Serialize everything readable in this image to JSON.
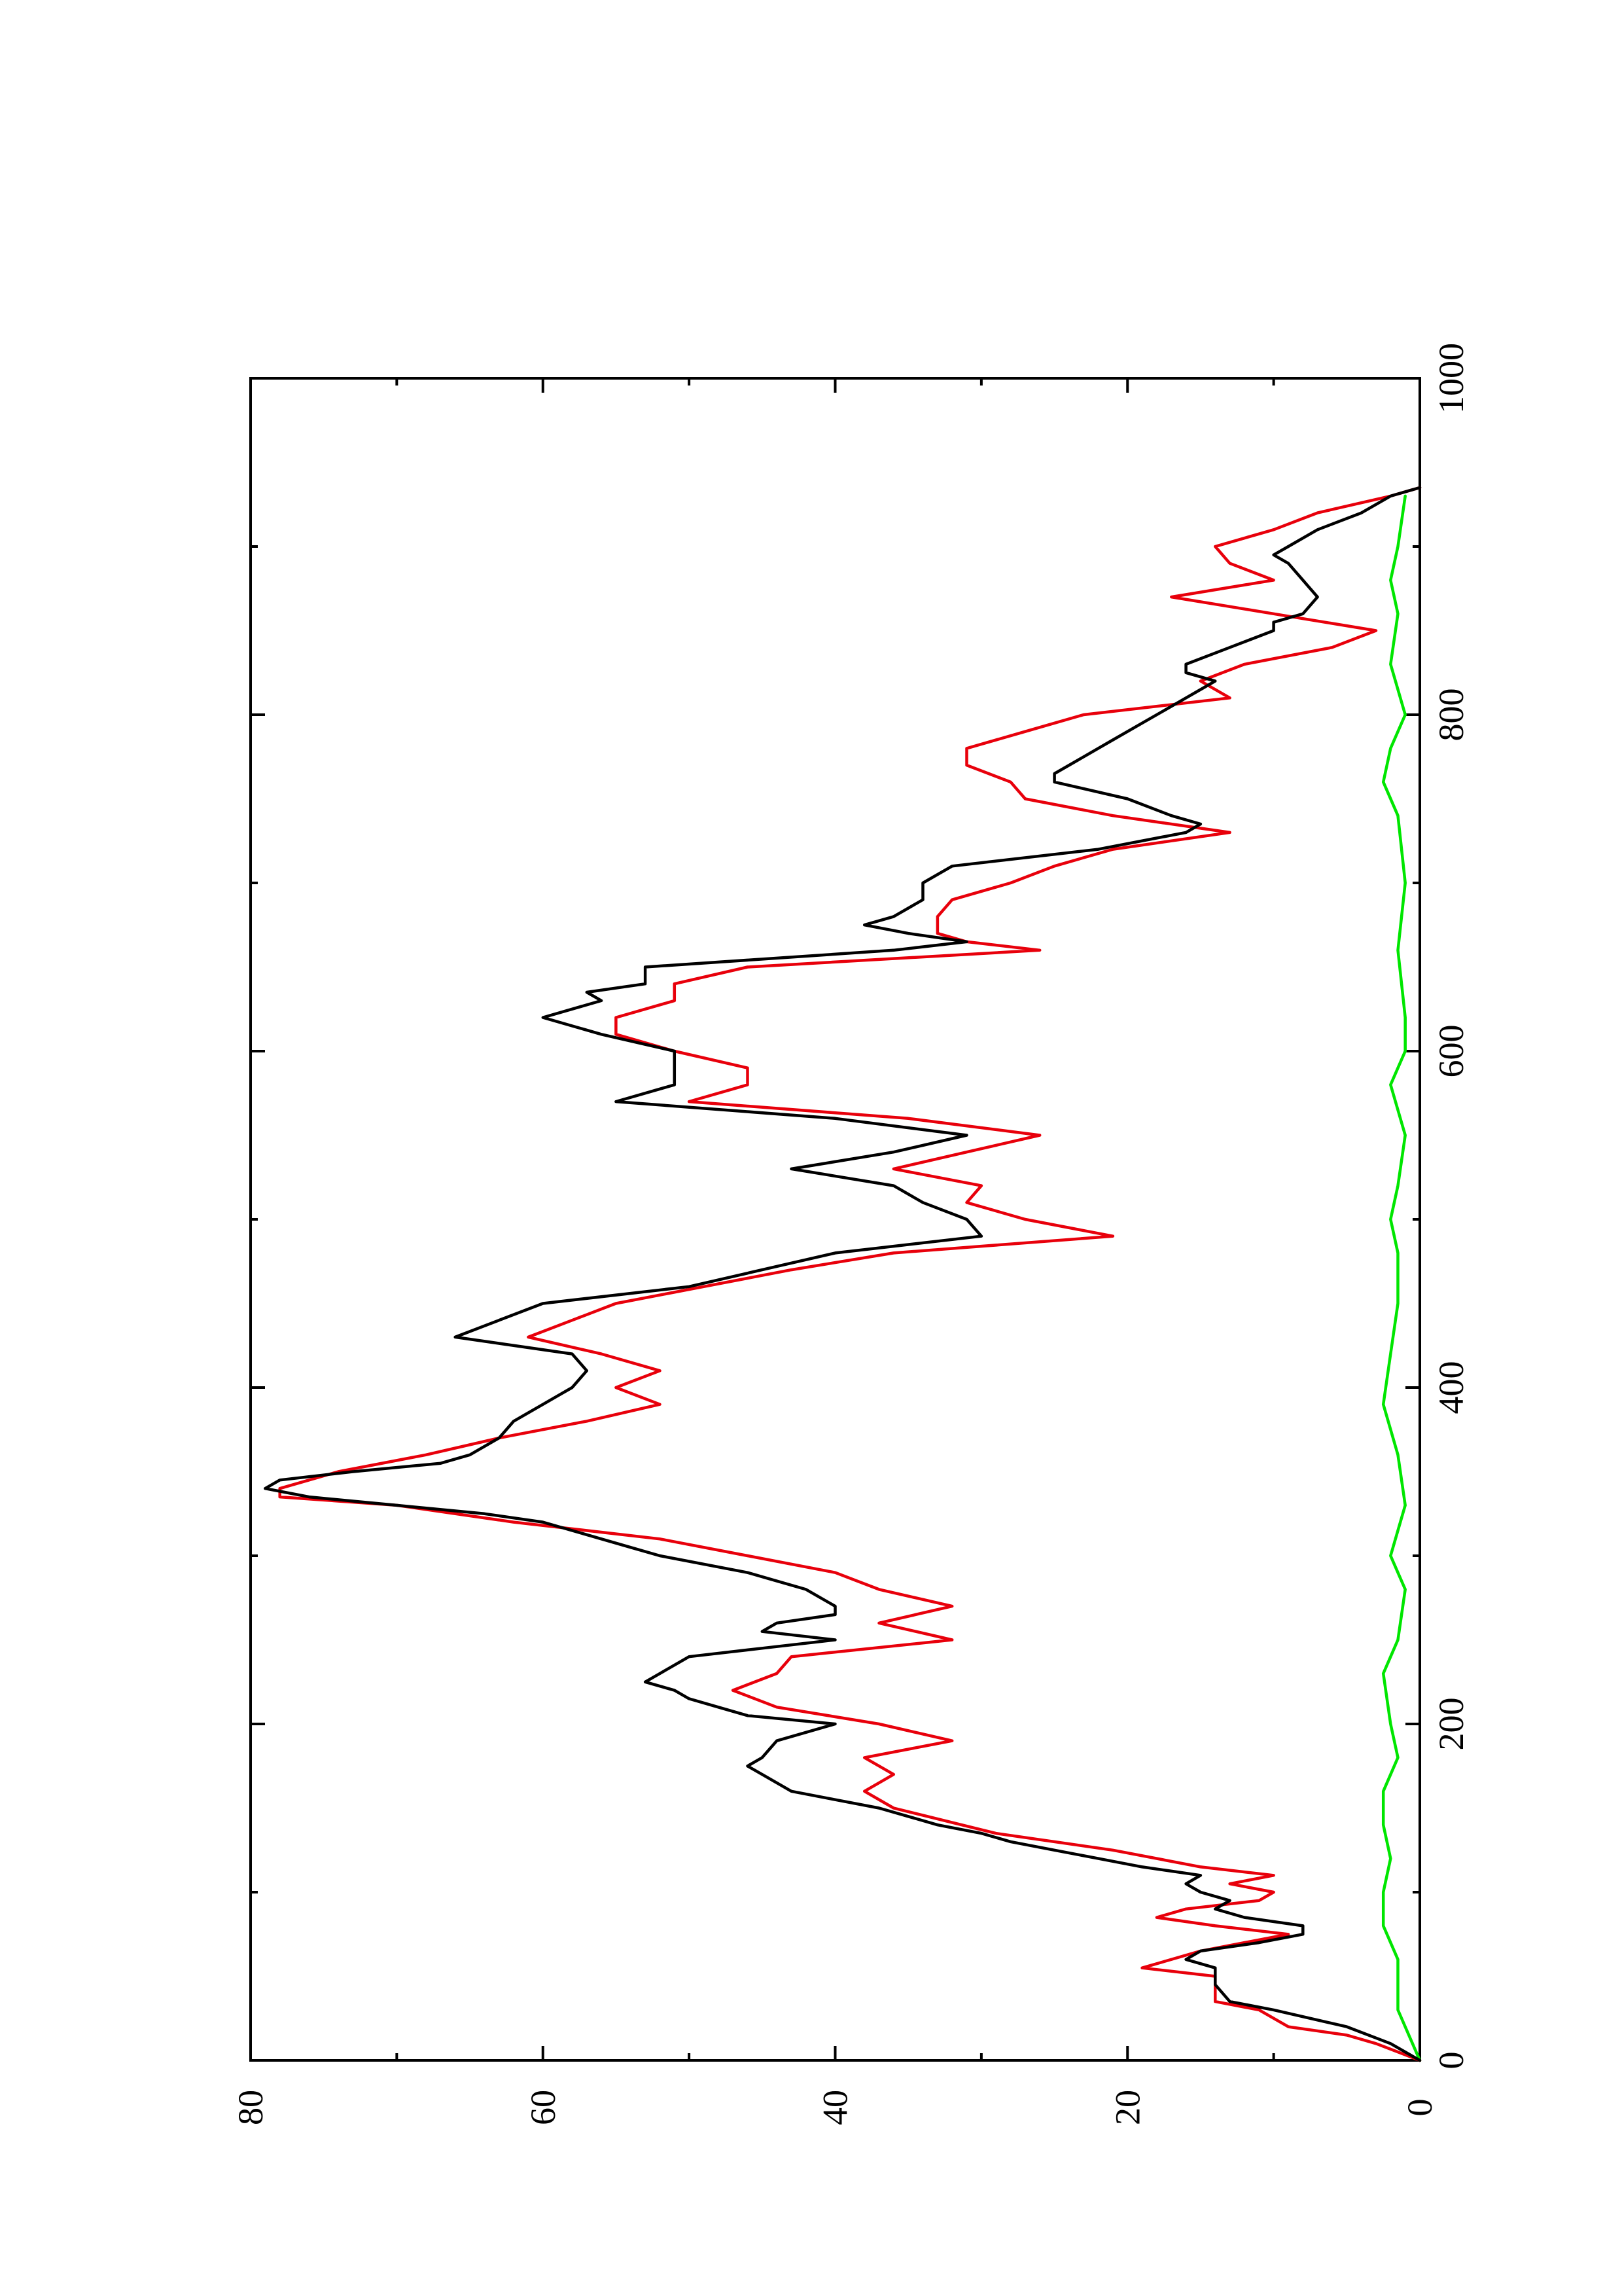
{
  "chart_data": {
    "type": "line",
    "orientation": "rotated-90-ccw",
    "title": "",
    "xlabel": "",
    "ylabel": "",
    "xlim": [
      0,
      1000
    ],
    "ylim": [
      0,
      80
    ],
    "x_ticks": [
      0,
      200,
      400,
      600,
      800,
      1000
    ],
    "x_tick_labels": [
      "0",
      "200",
      "400",
      "600",
      "800",
      "1000"
    ],
    "x_minor_ticks": [
      100,
      300,
      500,
      700,
      900
    ],
    "y_ticks": [
      0,
      20,
      40,
      60,
      80
    ],
    "y_tick_labels": [
      "0",
      "20",
      "40",
      "60",
      "80"
    ],
    "y_minor_ticks": [
      10,
      30,
      50,
      70
    ],
    "grid": false,
    "legend": "none",
    "series": [
      {
        "color": "#000000",
        "points": [
          [
            0,
            0
          ],
          [
            10,
            2
          ],
          [
            20,
            5
          ],
          [
            30,
            10
          ],
          [
            35,
            13
          ],
          [
            45,
            14
          ],
          [
            55,
            14
          ],
          [
            60,
            16
          ],
          [
            65,
            15
          ],
          [
            70,
            11
          ],
          [
            75,
            8
          ],
          [
            80,
            8
          ],
          [
            85,
            12
          ],
          [
            90,
            14
          ],
          [
            95,
            13
          ],
          [
            100,
            15
          ],
          [
            105,
            16
          ],
          [
            110,
            15
          ],
          [
            115,
            19
          ],
          [
            120,
            22
          ],
          [
            125,
            25
          ],
          [
            130,
            28
          ],
          [
            135,
            30
          ],
          [
            140,
            33
          ],
          [
            145,
            35
          ],
          [
            150,
            37
          ],
          [
            155,
            40
          ],
          [
            160,
            43
          ],
          [
            165,
            44
          ],
          [
            170,
            45
          ],
          [
            175,
            46
          ],
          [
            180,
            45
          ],
          [
            190,
            44
          ],
          [
            200,
            40
          ],
          [
            205,
            46
          ],
          [
            210,
            48
          ],
          [
            215,
            50
          ],
          [
            220,
            51
          ],
          [
            225,
            53
          ],
          [
            230,
            52
          ],
          [
            240,
            50
          ],
          [
            245,
            45
          ],
          [
            250,
            40
          ],
          [
            255,
            45
          ],
          [
            260,
            44
          ],
          [
            265,
            40
          ],
          [
            270,
            40
          ],
          [
            280,
            42
          ],
          [
            290,
            46
          ],
          [
            300,
            52
          ],
          [
            305,
            54
          ],
          [
            310,
            56
          ],
          [
            320,
            60
          ],
          [
            325,
            64
          ],
          [
            330,
            70
          ],
          [
            335,
            76
          ],
          [
            340,
            79
          ],
          [
            345,
            78
          ],
          [
            350,
            73
          ],
          [
            355,
            67
          ],
          [
            360,
            65
          ],
          [
            370,
            63
          ],
          [
            380,
            62
          ],
          [
            390,
            60
          ],
          [
            395,
            59
          ],
          [
            400,
            58
          ],
          [
            410,
            57
          ],
          [
            420,
            58
          ],
          [
            430,
            66
          ],
          [
            440,
            63
          ],
          [
            450,
            60
          ],
          [
            460,
            50
          ],
          [
            470,
            45
          ],
          [
            480,
            40
          ],
          [
            490,
            30
          ],
          [
            500,
            31
          ],
          [
            510,
            34
          ],
          [
            520,
            36
          ],
          [
            530,
            43
          ],
          [
            540,
            36
          ],
          [
            550,
            31
          ],
          [
            560,
            40
          ],
          [
            570,
            55
          ],
          [
            580,
            51
          ],
          [
            590,
            51
          ],
          [
            600,
            51
          ],
          [
            610,
            56
          ],
          [
            620,
            60
          ],
          [
            630,
            56
          ],
          [
            635,
            57
          ],
          [
            640,
            53
          ],
          [
            650,
            53
          ],
          [
            660,
            36
          ],
          [
            665,
            31
          ],
          [
            670,
            35
          ],
          [
            675,
            38
          ],
          [
            680,
            36
          ],
          [
            690,
            34
          ],
          [
            700,
            34
          ],
          [
            710,
            32
          ],
          [
            720,
            22
          ],
          [
            730,
            16
          ],
          [
            735,
            15
          ],
          [
            740,
            17
          ],
          [
            750,
            20
          ],
          [
            760,
            25
          ],
          [
            765,
            25
          ],
          [
            775,
            23
          ],
          [
            785,
            21
          ],
          [
            795,
            19
          ],
          [
            805,
            17
          ],
          [
            815,
            15
          ],
          [
            820,
            14
          ],
          [
            825,
            16
          ],
          [
            830,
            16
          ],
          [
            840,
            13
          ],
          [
            850,
            10
          ],
          [
            855,
            10
          ],
          [
            860,
            8
          ],
          [
            870,
            7
          ],
          [
            880,
            8
          ],
          [
            890,
            9
          ],
          [
            895,
            10
          ],
          [
            900,
            9
          ],
          [
            910,
            7
          ],
          [
            920,
            4
          ],
          [
            930,
            2
          ],
          [
            935,
            0
          ]
        ]
      },
      {
        "color": "#e8000b",
        "points": [
          [
            0,
            0
          ],
          [
            10,
            3
          ],
          [
            15,
            5
          ],
          [
            20,
            9
          ],
          [
            30,
            11
          ],
          [
            35,
            14
          ],
          [
            50,
            14
          ],
          [
            55,
            19
          ],
          [
            65,
            15
          ],
          [
            75,
            9
          ],
          [
            80,
            14
          ],
          [
            85,
            18
          ],
          [
            90,
            16
          ],
          [
            95,
            11
          ],
          [
            100,
            10
          ],
          [
            105,
            13
          ],
          [
            110,
            10
          ],
          [
            115,
            15
          ],
          [
            125,
            21
          ],
          [
            135,
            29
          ],
          [
            150,
            36
          ],
          [
            160,
            38
          ],
          [
            170,
            36
          ],
          [
            180,
            38
          ],
          [
            190,
            32
          ],
          [
            200,
            37
          ],
          [
            210,
            44
          ],
          [
            220,
            47
          ],
          [
            230,
            44
          ],
          [
            240,
            43
          ],
          [
            250,
            32
          ],
          [
            260,
            37
          ],
          [
            270,
            32
          ],
          [
            280,
            37
          ],
          [
            290,
            40
          ],
          [
            300,
            46
          ],
          [
            310,
            52
          ],
          [
            320,
            62
          ],
          [
            330,
            70
          ],
          [
            335,
            78
          ],
          [
            340,
            78
          ],
          [
            350,
            74
          ],
          [
            360,
            68
          ],
          [
            370,
            63
          ],
          [
            380,
            57
          ],
          [
            390,
            52
          ],
          [
            400,
            55
          ],
          [
            410,
            52
          ],
          [
            420,
            56
          ],
          [
            430,
            61
          ],
          [
            440,
            58
          ],
          [
            450,
            55
          ],
          [
            460,
            49
          ],
          [
            470,
            43
          ],
          [
            480,
            36
          ],
          [
            490,
            21
          ],
          [
            500,
            27
          ],
          [
            510,
            31
          ],
          [
            520,
            30
          ],
          [
            530,
            36
          ],
          [
            540,
            31
          ],
          [
            550,
            26
          ],
          [
            560,
            35
          ],
          [
            570,
            50
          ],
          [
            580,
            46
          ],
          [
            590,
            46
          ],
          [
            600,
            51
          ],
          [
            610,
            55
          ],
          [
            620,
            55
          ],
          [
            630,
            51
          ],
          [
            640,
            51
          ],
          [
            650,
            46
          ],
          [
            660,
            26
          ],
          [
            665,
            31
          ],
          [
            670,
            33
          ],
          [
            680,
            33
          ],
          [
            690,
            32
          ],
          [
            700,
            28
          ],
          [
            710,
            25
          ],
          [
            720,
            21
          ],
          [
            730,
            13
          ],
          [
            740,
            21
          ],
          [
            750,
            27
          ],
          [
            760,
            28
          ],
          [
            770,
            31
          ],
          [
            780,
            31
          ],
          [
            790,
            27
          ],
          [
            800,
            23
          ],
          [
            810,
            13
          ],
          [
            820,
            15
          ],
          [
            830,
            12
          ],
          [
            840,
            6
          ],
          [
            850,
            3
          ],
          [
            860,
            10
          ],
          [
            870,
            17
          ],
          [
            880,
            10
          ],
          [
            890,
            13
          ],
          [
            900,
            14
          ],
          [
            910,
            10
          ],
          [
            920,
            7
          ],
          [
            930,
            2
          ],
          [
            935,
            0
          ]
        ]
      },
      {
        "color": "#00e600",
        "points": [
          [
            0,
            0
          ],
          [
            30,
            1.5
          ],
          [
            60,
            1.5
          ],
          [
            80,
            2.5
          ],
          [
            100,
            2.5
          ],
          [
            120,
            2
          ],
          [
            140,
            2.5
          ],
          [
            160,
            2.5
          ],
          [
            180,
            1.5
          ],
          [
            200,
            2
          ],
          [
            230,
            2.5
          ],
          [
            250,
            1.5
          ],
          [
            280,
            1
          ],
          [
            300,
            2
          ],
          [
            330,
            1
          ],
          [
            360,
            1.5
          ],
          [
            390,
            2.5
          ],
          [
            420,
            2
          ],
          [
            450,
            1.5
          ],
          [
            480,
            1.5
          ],
          [
            500,
            2
          ],
          [
            520,
            1.5
          ],
          [
            550,
            1
          ],
          [
            580,
            2
          ],
          [
            600,
            1
          ],
          [
            620,
            1
          ],
          [
            660,
            1.5
          ],
          [
            700,
            1
          ],
          [
            740,
            1.5
          ],
          [
            760,
            2.5
          ],
          [
            780,
            2
          ],
          [
            800,
            1
          ],
          [
            830,
            2
          ],
          [
            860,
            1.5
          ],
          [
            880,
            2
          ],
          [
            900,
            1.5
          ],
          [
            930,
            1
          ]
        ]
      }
    ]
  }
}
